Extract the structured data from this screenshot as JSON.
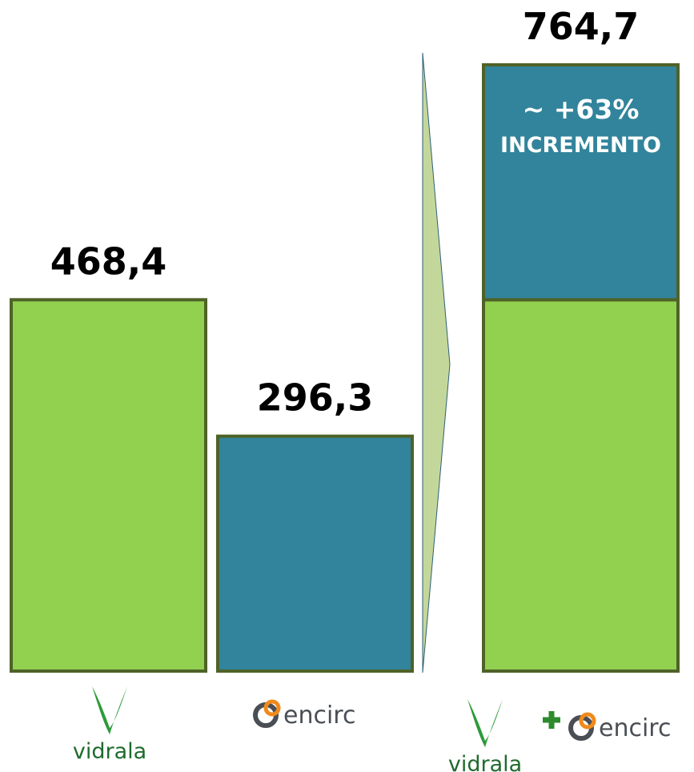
{
  "chart_data": {
    "type": "bar",
    "categories": [
      "vidrala",
      "encirc",
      null
    ],
    "combined_label": [
      "vidrala",
      "encirc"
    ],
    "series": [
      {
        "color": "#92d050",
        "values": [
          468.4,
          null,
          468.4
        ],
        "value_labels": [
          "468,4",
          null,
          null
        ]
      },
      {
        "color": "#31849b",
        "values": [
          null,
          296.3,
          296.3
        ],
        "value_labels": [
          null,
          "296,3",
          null
        ]
      }
    ],
    "total": 764.7,
    "total_label": "764,7",
    "annotation": [
      "~ +63%",
      "INCREMENTO"
    ],
    "ylim": [
      0,
      800
    ]
  }
}
